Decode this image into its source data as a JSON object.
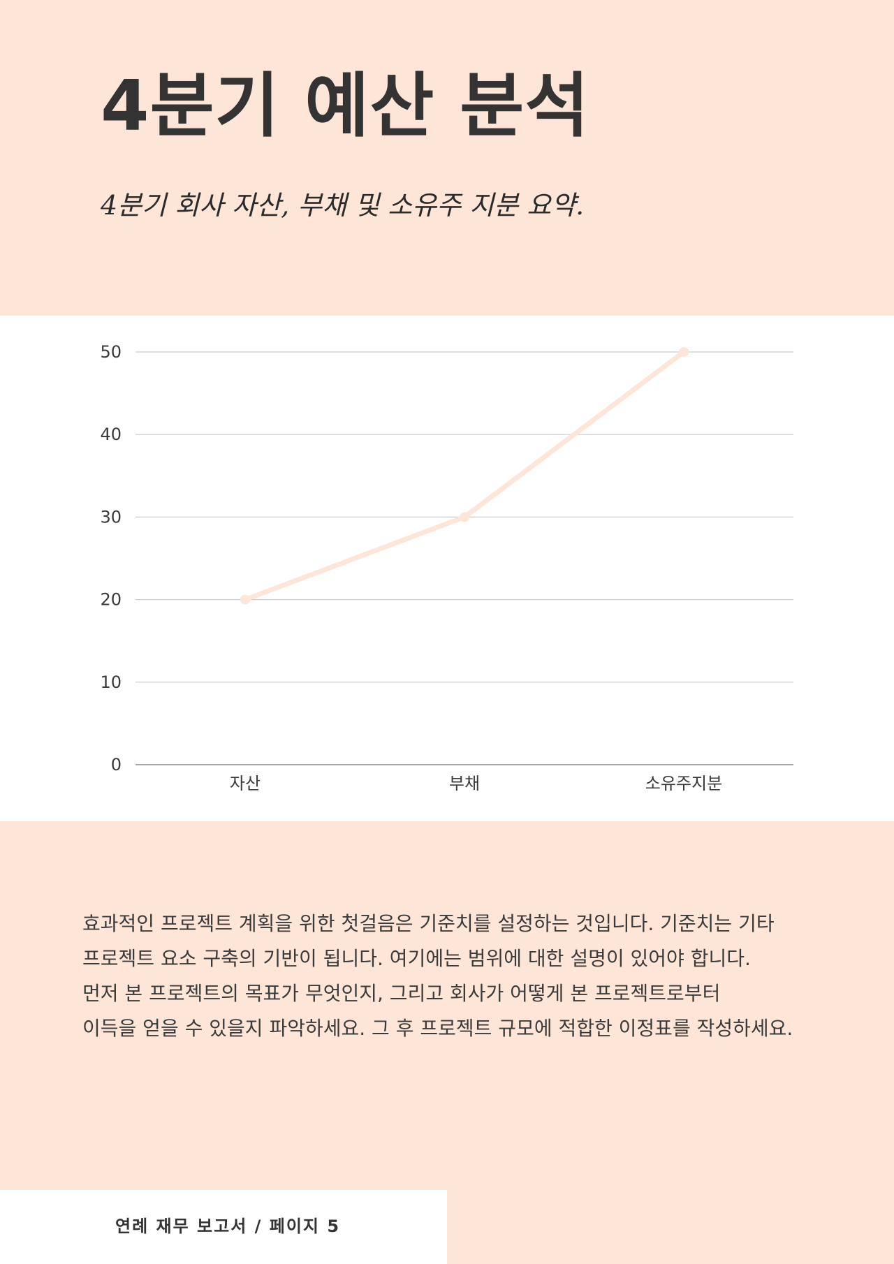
{
  "header": {
    "title": "4분기 예산 분석",
    "subtitle": "4분기 회사 자산, 부채 및 소유주 지분 요약."
  },
  "chart_data": {
    "type": "line",
    "categories": [
      "자산",
      "부채",
      "소유주지분"
    ],
    "values": [
      20,
      30,
      50
    ],
    "ylim": [
      0,
      50
    ],
    "yticks": [
      0,
      10,
      20,
      30,
      40,
      50
    ],
    "grid": true,
    "line_color": "#fde5d7",
    "gridline_color": "#cccccc"
  },
  "body": {
    "text": "효과적인 프로젝트 계획을 위한 첫걸음은 기준치를 설정하는 것입니다. 기준치는 기타\n프로젝트 요소 구축의 기반이 됩니다. 여기에는 범위에 대한 설명이 있어야 합니다.\n먼저 본 프로젝트의 목표가 무엇인지, 그리고 회사가 어떻게 본 프로젝트로부터\n이득을 얻을 수 있을지 파악하세요. 그 후 프로젝트 규모에 적합한 이정표를 작성하세요."
  },
  "footer": {
    "text": "연례 재무 보고서 / 페이지 5"
  },
  "colors": {
    "background_accent": "#fde5d7",
    "text_dark": "#333333"
  }
}
